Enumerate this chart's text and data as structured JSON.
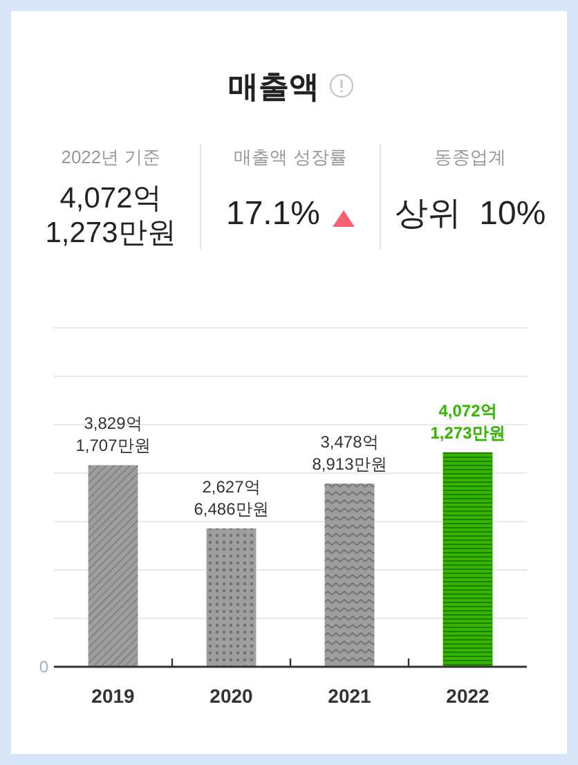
{
  "chart_data": [
    {
      "type": "other",
      "title": "매출액",
      "annotations": [
        "2022년 기준",
        "4,072억\n1,273만원",
        "매출액 성장률",
        "17.1%",
        "동종업계",
        "상위  10%"
      ]
    },
    {
      "type": "bar",
      "categories": [
        "2019",
        "2020",
        "2021",
        "2022"
      ],
      "values": [
        3829,
        2627,
        3478,
        4072
      ],
      "colors": [
        "#9e9e9e",
        "#9e9e9e",
        "#9e9e9e",
        "#33b500"
      ],
      "value_labels": [
        "3,829억\n1,707만원",
        "2,627억\n6,486만원",
        "3,478억\n8,913만원",
        "4,072억\n1,273만원"
      ],
      "annotations": [
        "0"
      ],
      "grid": "y"
    }
  ]
}
